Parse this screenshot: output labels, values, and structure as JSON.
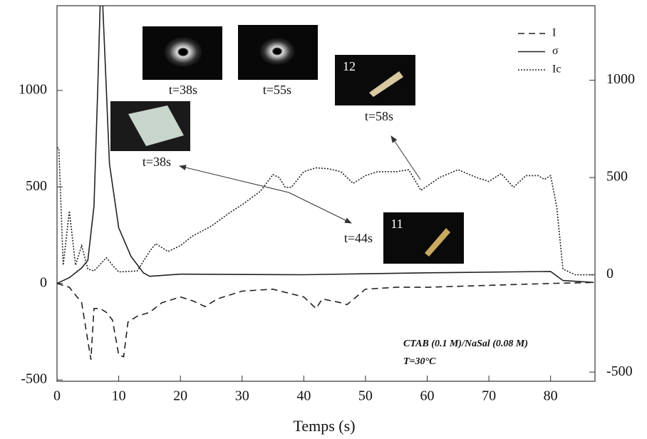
{
  "chart_data": {
    "type": "line",
    "xlabel": "Temps (s)",
    "xlim": [
      0,
      87.2
    ],
    "ylim": [
      -507,
      1439
    ],
    "y2lim": [
      -547,
      1383
    ],
    "xticks": [
      0,
      10,
      20,
      30,
      40,
      50,
      60,
      70,
      80
    ],
    "yticks": [
      -500,
      0,
      500,
      1000
    ],
    "y2ticks": [
      -500,
      0,
      500,
      1000
    ],
    "series": [
      {
        "name": "I",
        "color": "#222",
        "dash": "dashed",
        "axis": "y",
        "x": [
          0,
          2,
          4,
          5.5,
          6,
          7,
          8,
          9,
          10,
          10.8,
          11.5,
          13,
          15,
          17,
          20,
          22,
          24,
          26,
          30,
          35,
          40,
          42,
          43,
          46,
          47,
          50,
          55,
          60,
          70,
          80,
          87
        ],
        "values": [
          0,
          -20,
          -100,
          -395,
          -130,
          -130,
          -150,
          -190,
          -370,
          -380,
          -200,
          -170,
          -150,
          -100,
          -70,
          -90,
          -120,
          -80,
          -40,
          -30,
          -70,
          -130,
          -80,
          -100,
          -110,
          -30,
          -20,
          -20,
          -10,
          0,
          5
        ]
      },
      {
        "name": "σ",
        "color": "#222",
        "dash": "solid",
        "axis": "y",
        "x": [
          0,
          2,
          4,
          5,
          6,
          6.6,
          7,
          7.4,
          8,
          8.5,
          10,
          12,
          14,
          15,
          20,
          40,
          60,
          80,
          82,
          87
        ],
        "values": [
          0,
          30,
          80,
          120,
          400,
          1000,
          1450,
          1450,
          1000,
          620,
          288,
          140,
          55,
          37,
          48,
          45,
          55,
          62,
          15,
          5
        ]
      },
      {
        "name": "Ic",
        "color": "#222",
        "dash": "dotted",
        "axis": "y2",
        "x": [
          0,
          0.3,
          1,
          2,
          3,
          4,
          5,
          6,
          8,
          9,
          10,
          13,
          15,
          16,
          18,
          20,
          22,
          25,
          28,
          30,
          33,
          35,
          36,
          37,
          38,
          40,
          42,
          44,
          46,
          48,
          50,
          52,
          55,
          57,
          59,
          62,
          65,
          68,
          70,
          72,
          74,
          76,
          78,
          79,
          80,
          81,
          82,
          84,
          87
        ],
        "values": [
          653,
          650,
          50,
          328,
          50,
          150,
          30,
          20,
          88,
          50,
          15,
          20,
          120,
          160,
          120,
          150,
          200,
          250,
          320,
          360,
          430,
          515,
          500,
          450,
          450,
          530,
          550,
          545,
          530,
          470,
          510,
          530,
          530,
          540,
          434,
          500,
          540,
          500,
          480,
          520,
          450,
          510,
          510,
          490,
          510,
          350,
          30,
          0,
          0
        ]
      }
    ],
    "annotations": [
      "t=38s",
      "t=55s",
      "t=58s",
      "12",
      "t=38s",
      "t=44s",
      "11",
      "CTAB (0.1 M)/NaSal (0.08 M)",
      "T=30°C"
    ]
  }
}
